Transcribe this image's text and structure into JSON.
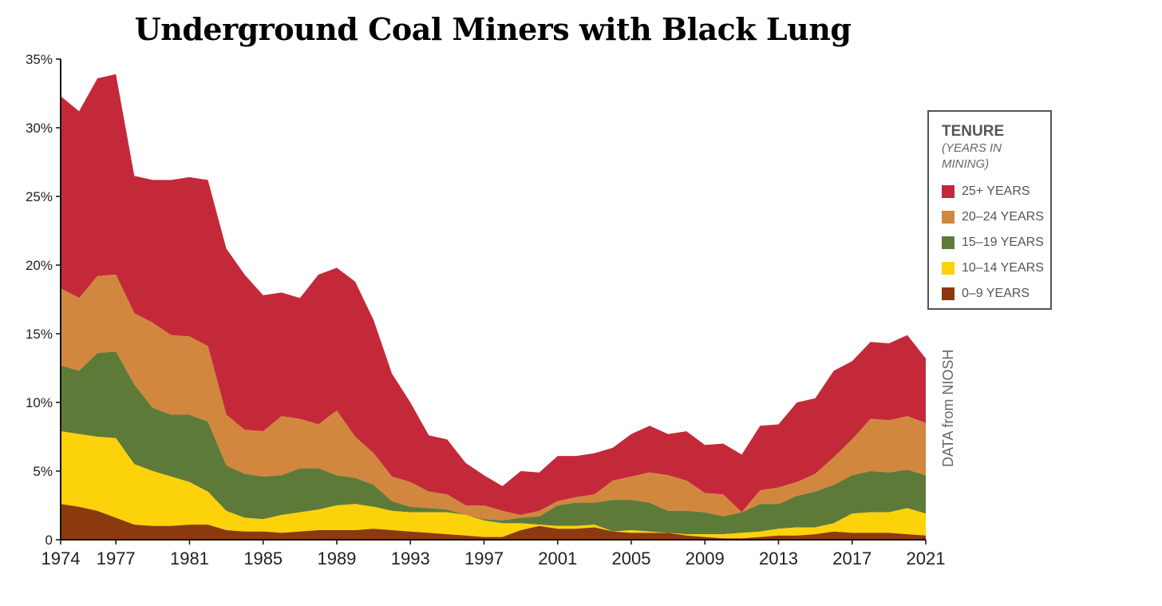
{
  "chart_data": {
    "type": "area",
    "stacked": true,
    "title": "Underground Coal Miners with Black Lung",
    "x": [
      1974,
      1975,
      1976,
      1977,
      1978,
      1979,
      1980,
      1981,
      1982,
      1983,
      1984,
      1985,
      1986,
      1987,
      1988,
      1989,
      1990,
      1991,
      1992,
      1993,
      1994,
      1995,
      1996,
      1997,
      1998,
      1999,
      2000,
      2001,
      2002,
      2003,
      2004,
      2005,
      2006,
      2007,
      2008,
      2009,
      2010,
      2011,
      2012,
      2013,
      2014,
      2015,
      2016,
      2017,
      2018,
      2019,
      2020,
      2021
    ],
    "xticks": [
      "1974",
      "1977",
      "1981",
      "1985",
      "1989",
      "1993",
      "1997",
      "2001",
      "2005",
      "2009",
      "2013",
      "2017",
      "2021"
    ],
    "yticks": [
      "0",
      "5%",
      "10%",
      "15%",
      "20%",
      "25%",
      "30%",
      "35%"
    ],
    "ylim": [
      0,
      35
    ],
    "series": [
      {
        "name": "0-9 YEARS",
        "color": "#8b3a0f",
        "values": [
          2.6,
          2.4,
          2.1,
          1.6,
          1.1,
          1.0,
          1.0,
          1.1,
          1.1,
          0.7,
          0.6,
          0.6,
          0.5,
          0.6,
          0.7,
          0.7,
          0.7,
          0.8,
          0.7,
          0.6,
          0.5,
          0.4,
          0.3,
          0.2,
          0.2,
          0.7,
          1.0,
          0.8,
          0.8,
          0.9,
          0.6,
          0.5,
          0.5,
          0.5,
          0.3,
          0.2,
          0.1,
          0.1,
          0.2,
          0.3,
          0.3,
          0.4,
          0.6,
          0.5,
          0.5,
          0.5,
          0.4,
          0.3
        ]
      },
      {
        "name": "10-14 YEARS",
        "color": "#fcd20a",
        "values": [
          5.3,
          5.3,
          5.4,
          5.8,
          4.4,
          4.0,
          3.6,
          3.1,
          2.4,
          1.4,
          1.0,
          0.9,
          1.3,
          1.4,
          1.5,
          1.8,
          1.9,
          1.6,
          1.4,
          1.4,
          1.5,
          1.6,
          1.5,
          1.2,
          1.0,
          0.5,
          0.1,
          0.2,
          0.2,
          0.2,
          0.0,
          0.2,
          0.1,
          0.0,
          0.1,
          0.2,
          0.3,
          0.4,
          0.4,
          0.5,
          0.6,
          0.5,
          0.6,
          1.4,
          1.5,
          1.5,
          1.9,
          1.6
        ]
      },
      {
        "name": "15-19 YEARS",
        "color": "#5e7a39",
        "values": [
          4.8,
          4.6,
          6.1,
          6.3,
          5.8,
          4.6,
          4.5,
          4.9,
          5.1,
          3.3,
          3.2,
          3.1,
          2.9,
          3.2,
          3.0,
          2.2,
          1.9,
          1.6,
          0.7,
          0.4,
          0.3,
          0.2,
          0.0,
          0.1,
          0.2,
          0.4,
          0.6,
          1.5,
          1.7,
          1.6,
          2.3,
          2.2,
          2.1,
          1.6,
          1.7,
          1.6,
          1.3,
          1.5,
          2.0,
          1.8,
          2.3,
          2.6,
          2.8,
          2.8,
          3.0,
          2.9,
          2.8,
          2.8
        ]
      },
      {
        "name": "20-24 YEARS",
        "color": "#d2873f",
        "values": [
          5.6,
          5.3,
          5.6,
          5.6,
          5.2,
          6.2,
          5.8,
          5.7,
          5.5,
          3.7,
          3.2,
          3.3,
          4.3,
          3.6,
          3.2,
          4.7,
          3.0,
          2.3,
          1.8,
          1.8,
          1.2,
          1.1,
          0.7,
          1.0,
          0.7,
          0.2,
          0.4,
          0.3,
          0.4,
          0.6,
          1.4,
          1.7,
          2.2,
          2.6,
          2.2,
          1.4,
          1.6,
          0.0,
          1.0,
          1.2,
          1.0,
          1.3,
          2.0,
          2.6,
          3.8,
          3.8,
          3.9,
          3.8
        ]
      },
      {
        "name": "25+ YEARS",
        "color": "#c4293a",
        "values": [
          14.0,
          13.6,
          14.4,
          14.6,
          10.0,
          10.4,
          11.3,
          11.6,
          12.1,
          12.1,
          11.3,
          9.9,
          9.0,
          8.8,
          10.9,
          10.4,
          11.3,
          9.7,
          7.5,
          5.8,
          4.1,
          4.0,
          3.1,
          2.2,
          1.8,
          3.2,
          2.8,
          3.3,
          3.0,
          3.0,
          2.4,
          3.1,
          3.4,
          3.0,
          3.6,
          3.5,
          3.7,
          4.2,
          4.7,
          4.6,
          5.8,
          5.5,
          6.3,
          5.7,
          5.6,
          5.6,
          5.9,
          4.7
        ]
      }
    ]
  },
  "legend": {
    "title": "TENURE",
    "subtitle": "(YEARS IN MINING)",
    "items": [
      {
        "label": "25+ YEARS",
        "color": "#c4293a"
      },
      {
        "label": "20–24 YEARS",
        "color": "#d2873f"
      },
      {
        "label": "15–19 YEARS",
        "color": "#5e7a39"
      },
      {
        "label": "10–14 YEARS",
        "color": "#fcd20a"
      },
      {
        "label": "0–9 YEARS",
        "color": "#8b3a0f"
      }
    ]
  },
  "source": "DATA from NIOSH"
}
